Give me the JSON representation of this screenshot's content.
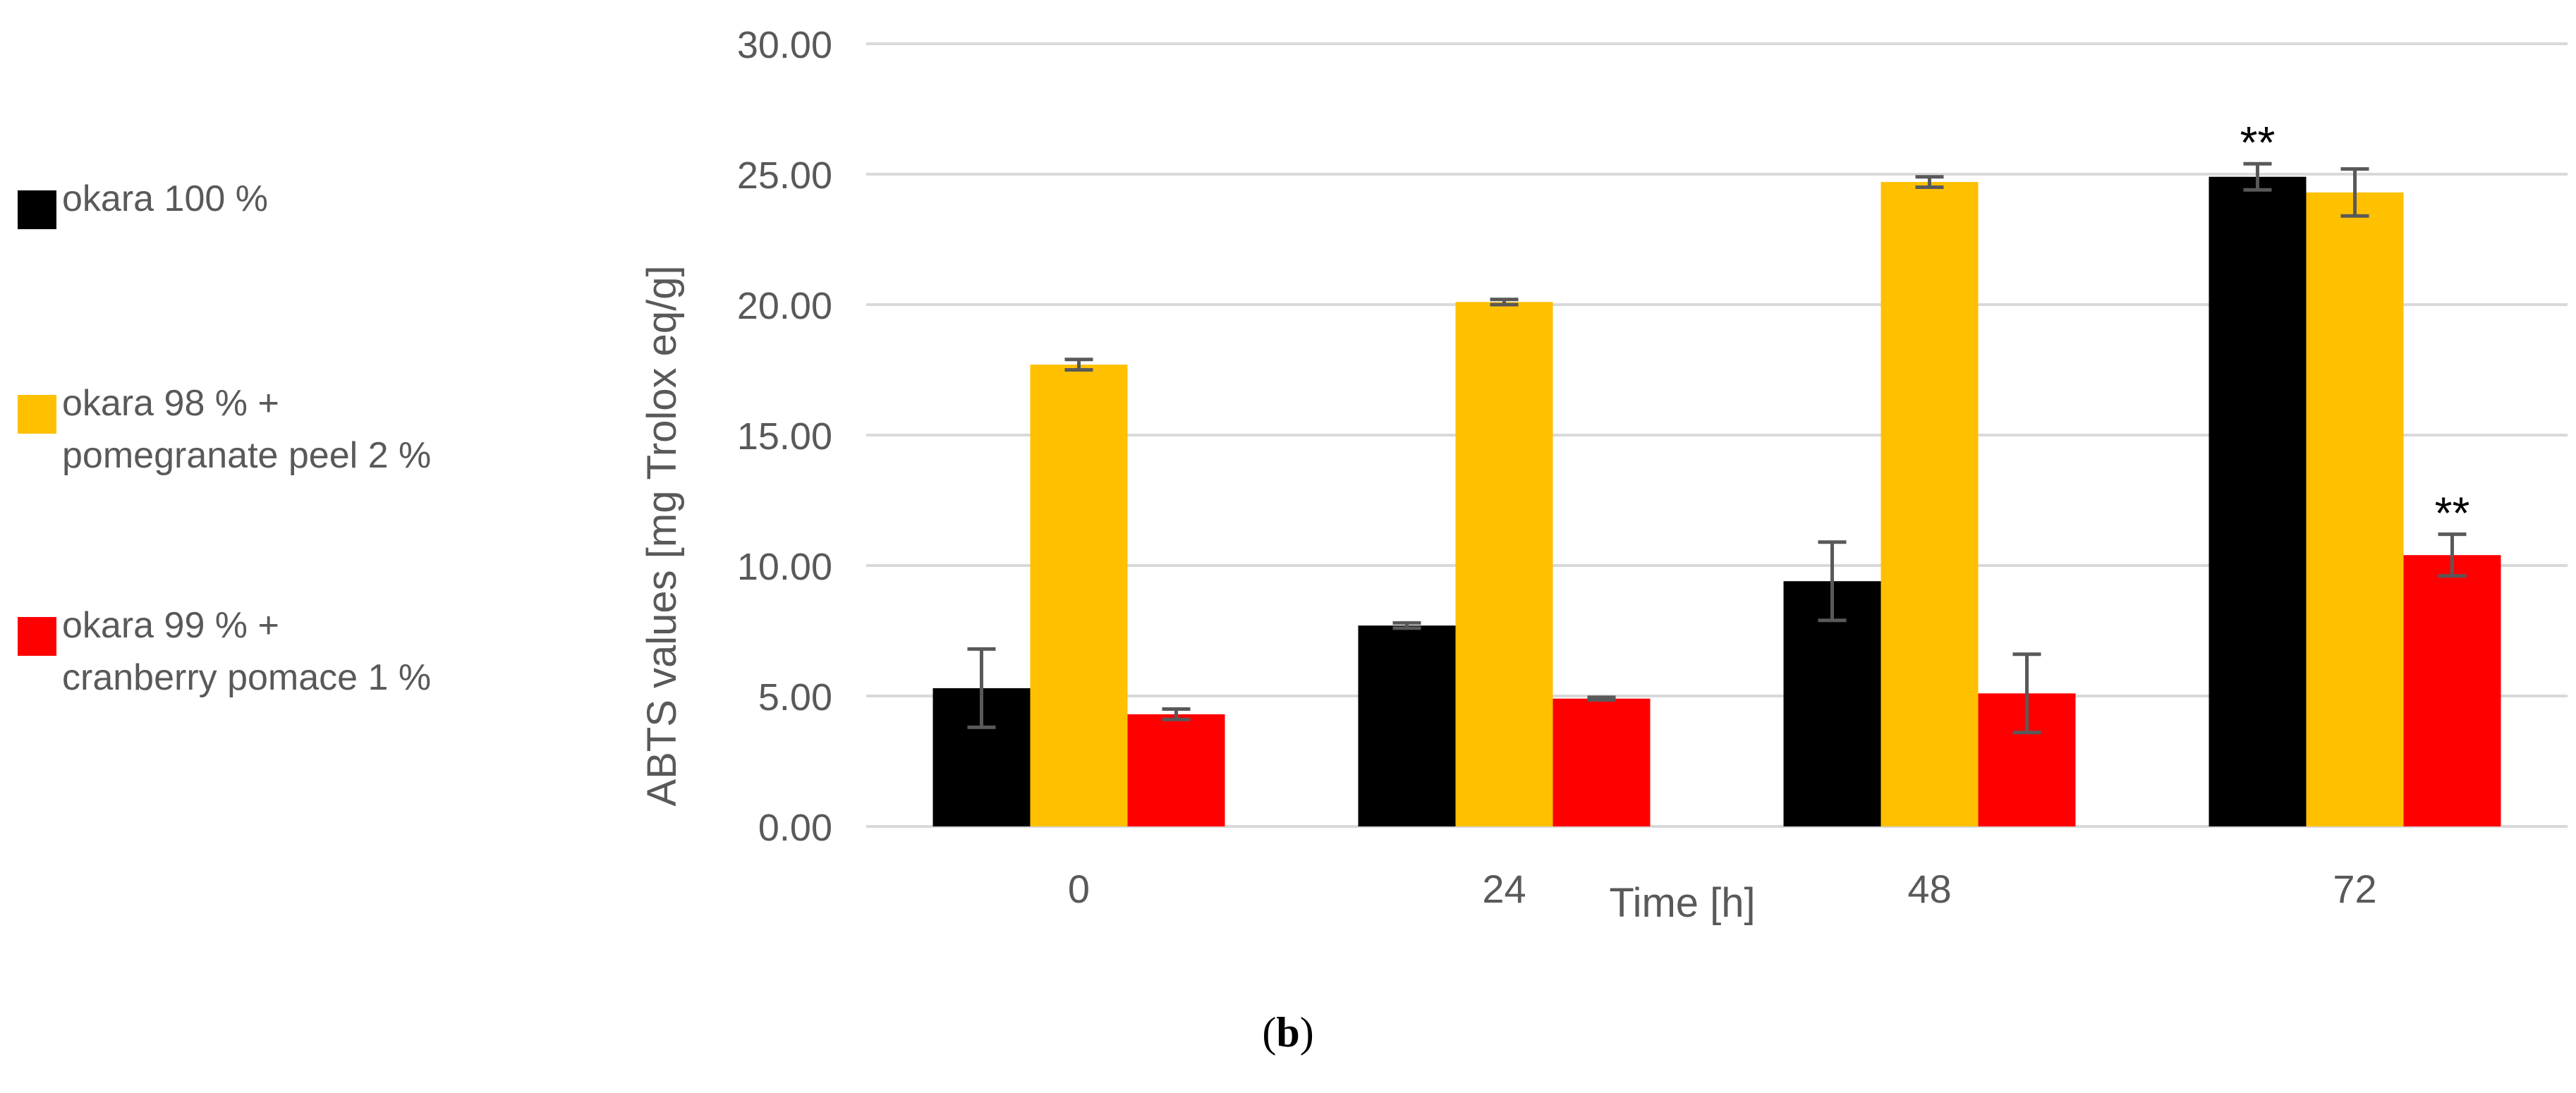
{
  "chart_data": {
    "type": "bar",
    "categories": [
      "0",
      "24",
      "48",
      "72"
    ],
    "xlabel": "Time [h]",
    "ylabel": "ABTS values [mg Trolox eq/g]",
    "ylim": [
      0,
      30
    ],
    "yticks": [
      "0.00",
      "5.00",
      "10.00",
      "15.00",
      "20.00",
      "25.00",
      "30.00"
    ],
    "grid": true,
    "legend_position": "left",
    "series": [
      {
        "name": "okara 100 %",
        "color": "#000000",
        "values": [
          5.3,
          7.7,
          9.4,
          24.9
        ],
        "errors": [
          1.5,
          0.1,
          1.5,
          0.5
        ]
      },
      {
        "name": "okara 98 % +\npomegranate peel 2 %",
        "color": "#FFC000",
        "values": [
          17.7,
          20.1,
          24.7,
          24.3
        ],
        "errors": [
          0.2,
          0.1,
          0.2,
          0.9
        ]
      },
      {
        "name": "okara 99 % +\ncranberry pomace 1 %",
        "color": "#FF0000",
        "values": [
          4.3,
          4.9,
          5.1,
          10.4
        ],
        "errors": [
          0.2,
          0.05,
          1.5,
          0.8
        ]
      }
    ],
    "annotations": [
      {
        "series": 0,
        "category": "72",
        "text": "**"
      },
      {
        "series": 2,
        "category": "72",
        "text": "**"
      }
    ]
  },
  "caption": {
    "label": "b",
    "open": "(",
    "close": ")"
  }
}
